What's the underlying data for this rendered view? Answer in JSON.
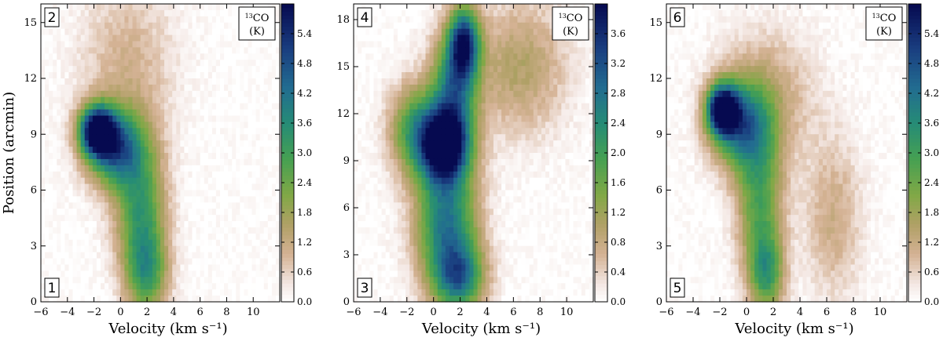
{
  "chart_data": [
    {
      "type": "heatmap",
      "top_left_label": "2",
      "bottom_left_label": "1",
      "legend": {
        "line1_sup": "13",
        "line1": "CO",
        "line2": "(K)"
      },
      "xlabel": "Velocity (km s⁻¹)",
      "ylabel": "Position (arcmin)",
      "xlim": [
        -6,
        12
      ],
      "ylim": [
        0,
        16
      ],
      "xticks": [
        -6,
        -4,
        -2,
        0,
        2,
        4,
        6,
        8,
        10
      ],
      "yticks": [
        0,
        3,
        6,
        9,
        12,
        15
      ],
      "clim": [
        0,
        6.0
      ],
      "cbar_ticks": [
        "0.0",
        "0.6",
        "1.2",
        "1.8",
        "2.4",
        "3.0",
        "3.6",
        "4.2",
        "4.8",
        "5.4"
      ],
      "features": [
        {
          "v": -1.8,
          "p": 9.2,
          "peak": 5.8,
          "sv": 0.9,
          "sp": 0.9
        },
        {
          "v": -0.5,
          "p": 8.3,
          "peak": 4.2,
          "sv": 1.4,
          "sp": 1.4
        },
        {
          "v": 1.5,
          "p": 5.0,
          "peak": 3.0,
          "sv": 1.3,
          "sp": 2.6
        },
        {
          "v": 2.0,
          "p": 1.5,
          "peak": 2.5,
          "sv": 1.1,
          "sp": 1.6
        },
        {
          "v": 0.5,
          "p": 12.5,
          "peak": 1.0,
          "sv": 2.5,
          "sp": 3.5
        }
      ]
    },
    {
      "type": "heatmap",
      "top_left_label": "4",
      "bottom_left_label": "3",
      "legend": {
        "line1_sup": "13",
        "line1": "CO",
        "line2": "(K)"
      },
      "xlabel": "Velocity (km s⁻¹)",
      "ylabel": "",
      "xlim": [
        -6,
        12
      ],
      "ylim": [
        0,
        19
      ],
      "xticks": [
        -6,
        -4,
        -2,
        0,
        2,
        4,
        6,
        8,
        10
      ],
      "yticks": [
        0,
        3,
        6,
        9,
        12,
        15,
        18
      ],
      "clim": [
        0,
        4.0
      ],
      "cbar_ticks": [
        "0.0",
        "0.4",
        "0.8",
        "1.2",
        "1.6",
        "2.0",
        "2.4",
        "2.8",
        "3.2",
        "3.6"
      ],
      "features": [
        {
          "v": 0.8,
          "p": 10.0,
          "peak": 3.9,
          "sv": 1.3,
          "sp": 1.6
        },
        {
          "v": 1.0,
          "p": 5.0,
          "peak": 2.7,
          "sv": 1.6,
          "sp": 3.0
        },
        {
          "v": 2.3,
          "p": 16.5,
          "peak": 3.2,
          "sv": 0.8,
          "sp": 1.6
        },
        {
          "v": 1.5,
          "p": 13.5,
          "peak": 2.4,
          "sv": 1.2,
          "sp": 2.5
        },
        {
          "v": -1.5,
          "p": 11.0,
          "peak": 1.8,
          "sv": 1.3,
          "sp": 2.0
        },
        {
          "v": 6.5,
          "p": 15.0,
          "peak": 1.0,
          "sv": 2.5,
          "sp": 3.0
        },
        {
          "v": 2.0,
          "p": 1.5,
          "peak": 2.2,
          "sv": 1.3,
          "sp": 1.5
        }
      ]
    },
    {
      "type": "heatmap",
      "top_left_label": "6",
      "bottom_left_label": "5",
      "legend": {
        "line1_sup": "13",
        "line1": "CO",
        "line2": "(K)"
      },
      "xlabel": "Velocity (km s⁻¹)",
      "ylabel": "",
      "xlim": [
        -6,
        12
      ],
      "ylim": [
        0,
        16
      ],
      "xticks": [
        -6,
        -4,
        -2,
        0,
        2,
        4,
        6,
        8,
        10
      ],
      "yticks": [
        0,
        3,
        6,
        9,
        12,
        15
      ],
      "clim": [
        0,
        6.0
      ],
      "cbar_ticks": [
        "0.0",
        "0.6",
        "1.2",
        "1.8",
        "2.4",
        "3.0",
        "3.6",
        "4.2",
        "4.8",
        "5.4"
      ],
      "features": [
        {
          "v": -1.8,
          "p": 10.3,
          "peak": 5.9,
          "sv": 0.8,
          "sp": 0.9
        },
        {
          "v": -0.5,
          "p": 9.5,
          "peak": 3.5,
          "sv": 1.5,
          "sp": 1.6
        },
        {
          "v": 1.0,
          "p": 5.5,
          "peak": 2.7,
          "sv": 1.2,
          "sp": 2.8
        },
        {
          "v": 1.5,
          "p": 1.5,
          "peak": 2.7,
          "sv": 0.9,
          "sp": 1.5
        },
        {
          "v": 6.5,
          "p": 4.5,
          "peak": 1.1,
          "sv": 1.5,
          "sp": 3.0
        },
        {
          "v": 1.5,
          "p": 11.0,
          "peak": 1.2,
          "sv": 2.5,
          "sp": 2.5
        }
      ]
    }
  ]
}
